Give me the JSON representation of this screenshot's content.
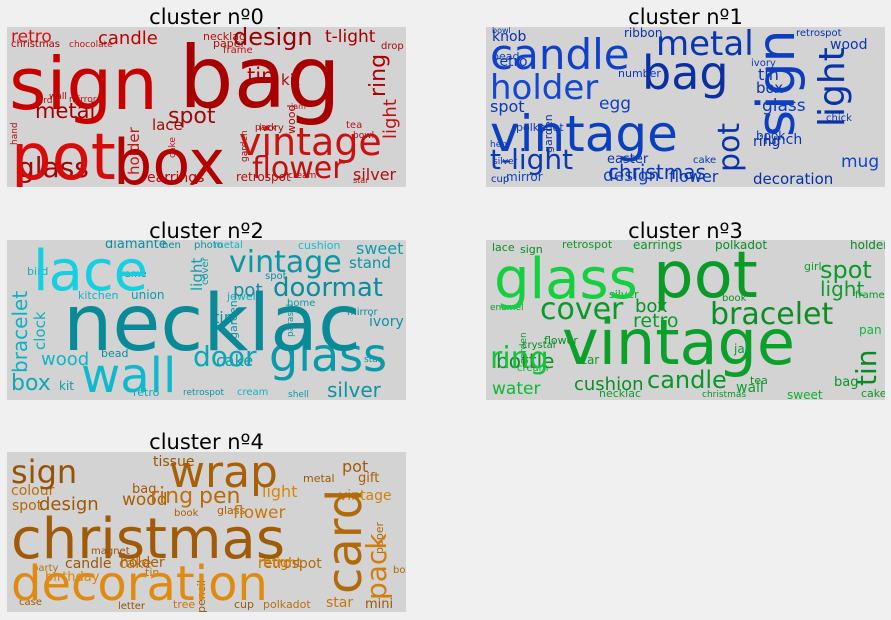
{
  "panels": [
    {
      "title": "cluster nº0",
      "words": [
        {
          "text": "sign",
          "color": "#c70000"
        },
        {
          "text": "bag",
          "color": "#a80000"
        },
        {
          "text": "pot",
          "color": "#d80b0b"
        },
        {
          "text": "box",
          "color": "#b30000"
        },
        {
          "text": "vintage",
          "color": "#cc1010"
        },
        {
          "text": "design",
          "color": "#9a0000"
        },
        {
          "text": "flower",
          "color": "#c21010"
        },
        {
          "text": "glass",
          "color": "#a00808"
        },
        {
          "text": "metal",
          "color": "#a50000"
        },
        {
          "text": "candle",
          "color": "#c00000"
        },
        {
          "text": "retro",
          "color": "#d01515"
        },
        {
          "text": "ring",
          "color": "#b00000"
        },
        {
          "text": "light",
          "color": "#c01010"
        },
        {
          "text": "spot",
          "color": "#9c0a0a"
        },
        {
          "text": "tin",
          "color": "#b80000"
        },
        {
          "text": "t-light",
          "color": "#a00000"
        },
        {
          "text": "silver",
          "color": "#b01010"
        },
        {
          "text": "holder",
          "color": "#c51515"
        },
        {
          "text": "lace",
          "color": "#9a0a0a"
        },
        {
          "text": "earrings",
          "color": "#c00a0a"
        },
        {
          "text": "kit",
          "color": "#a80b0b"
        },
        {
          "text": "necklac",
          "color": "#b81010"
        },
        {
          "text": "christmas",
          "color": "#a00505"
        },
        {
          "text": "paper",
          "color": "#b30a0a"
        },
        {
          "text": "frame",
          "color": "#c01212"
        },
        {
          "text": "wood",
          "color": "#a80a0a"
        },
        {
          "text": "cake",
          "color": "#c81414"
        },
        {
          "text": "garden",
          "color": "#b00808"
        },
        {
          "text": "ivory",
          "color": "#a00a0a"
        },
        {
          "text": "retrospot",
          "color": "#b51010"
        },
        {
          "text": "chocolate",
          "color": "#c41212"
        },
        {
          "text": "wall",
          "color": "#a10808"
        },
        {
          "text": "bird",
          "color": "#b40c0c"
        },
        {
          "text": "mirror",
          "color": "#c21010"
        },
        {
          "text": "drop",
          "color": "#a90909"
        },
        {
          "text": "pack",
          "color": "#b00b0b"
        },
        {
          "text": "tea",
          "color": "#c01010"
        },
        {
          "text": "bowl",
          "color": "#a50808"
        },
        {
          "text": "hand",
          "color": "#b80c0c"
        },
        {
          "text": "jam",
          "color": "#c41414"
        },
        {
          "text": "cream",
          "color": "#a60a0a"
        },
        {
          "text": "star",
          "color": "#b20c0c"
        }
      ]
    },
    {
      "title": "cluster nº1",
      "words": [
        {
          "text": "vintage",
          "color": "#0a3fbf"
        },
        {
          "text": "bag",
          "color": "#0b2fa0"
        },
        {
          "text": "candle",
          "color": "#1040c8"
        },
        {
          "text": "metal",
          "color": "#0a35b0"
        },
        {
          "text": "sign",
          "color": "#0d3ec2"
        },
        {
          "text": "light",
          "color": "#0a32a8"
        },
        {
          "text": "holder",
          "color": "#1447d0"
        },
        {
          "text": "t-light",
          "color": "#0b38b5"
        },
        {
          "text": "pot",
          "color": "#0c33a5"
        },
        {
          "text": "christmas",
          "color": "#0a35b8"
        },
        {
          "text": "design",
          "color": "#1345c5"
        },
        {
          "text": "decoration",
          "color": "#0a30a0"
        },
        {
          "text": "flower",
          "color": "#0d3ab0"
        },
        {
          "text": "spot",
          "color": "#0b38b8"
        },
        {
          "text": "egg",
          "color": "#1040c0"
        },
        {
          "text": "box",
          "color": "#0a33a8"
        },
        {
          "text": "tin",
          "color": "#0b36b0"
        },
        {
          "text": "glass",
          "color": "#0d3cbc"
        },
        {
          "text": "ring",
          "color": "#0a30a4"
        },
        {
          "text": "mug",
          "color": "#1244c6"
        },
        {
          "text": "lunch",
          "color": "#0b35ac"
        },
        {
          "text": "wood",
          "color": "#0a38b4"
        },
        {
          "text": "retro",
          "color": "#0d3ab8"
        },
        {
          "text": "knob",
          "color": "#0a32a8"
        },
        {
          "text": "mirror",
          "color": "#1042c4"
        },
        {
          "text": "easter",
          "color": "#0b36b0"
        },
        {
          "text": "cup",
          "color": "#0a30a0"
        },
        {
          "text": "book",
          "color": "#0d3cb8"
        },
        {
          "text": "bowl",
          "color": "#0b35ac"
        },
        {
          "text": "ribbon",
          "color": "#0a33a8"
        },
        {
          "text": "polkadot",
          "color": "#0d3ab4"
        },
        {
          "text": "number",
          "color": "#0b38b8"
        },
        {
          "text": "garden",
          "color": "#0a32a6"
        },
        {
          "text": "bead",
          "color": "#1040c0"
        },
        {
          "text": "cake",
          "color": "#0b36ae"
        },
        {
          "text": "retrospot",
          "color": "#0a35b0"
        },
        {
          "text": "hen",
          "color": "#0d3cba"
        },
        {
          "text": "silver",
          "color": "#0b33a8"
        },
        {
          "text": "chick",
          "color": "#0a38b4"
        },
        {
          "text": "ivory",
          "color": "#0d3ab0"
        }
      ]
    },
    {
      "title": "cluster nº2",
      "words": [
        {
          "text": "necklac",
          "color": "#0a8a96"
        },
        {
          "text": "lace",
          "color": "#14d0e0"
        },
        {
          "text": "wall",
          "color": "#10b8cc"
        },
        {
          "text": "glass",
          "color": "#0a9aa8"
        },
        {
          "text": "door",
          "color": "#0ca6b6"
        },
        {
          "text": "vintage",
          "color": "#0b96a4"
        },
        {
          "text": "doormat",
          "color": "#0a8e9c"
        },
        {
          "text": "bracelet",
          "color": "#10b0c2"
        },
        {
          "text": "box",
          "color": "#0ea8ba"
        },
        {
          "text": "silver",
          "color": "#0b94a2"
        },
        {
          "text": "wood",
          "color": "#10b4c6"
        },
        {
          "text": "cake",
          "color": "#0a9cac"
        },
        {
          "text": "pot",
          "color": "#0b90a0"
        },
        {
          "text": "sweet",
          "color": "#0d9aa8"
        },
        {
          "text": "stand",
          "color": "#0b94a2"
        },
        {
          "text": "diamante",
          "color": "#0a8e9c"
        },
        {
          "text": "clock",
          "color": "#10b0c0"
        },
        {
          "text": "tin",
          "color": "#0b98a6"
        },
        {
          "text": "light",
          "color": "#0ca0ae"
        },
        {
          "text": "ivory",
          "color": "#0b92a0"
        },
        {
          "text": "kitchen",
          "color": "#10b4c4"
        },
        {
          "text": "union",
          "color": "#0a9aa8"
        },
        {
          "text": "mirror",
          "color": "#0b90a0"
        },
        {
          "text": "retro",
          "color": "#0ea8b8"
        },
        {
          "text": "garden",
          "color": "#0b96a4"
        },
        {
          "text": "cushion",
          "color": "#12c0d0"
        },
        {
          "text": "photo",
          "color": "#0b94a2"
        },
        {
          "text": "frame",
          "color": "#0a8e9c"
        },
        {
          "text": "kit",
          "color": "#0d9caa"
        },
        {
          "text": "jewel",
          "color": "#10b0c0"
        },
        {
          "text": "spot",
          "color": "#0b92a0"
        },
        {
          "text": "cover",
          "color": "#0ca0ae"
        },
        {
          "text": "bead",
          "color": "#0a8e9c"
        },
        {
          "text": "cream",
          "color": "#10b4c4"
        },
        {
          "text": "retrospot",
          "color": "#0b94a2"
        },
        {
          "text": "shell",
          "color": "#0a9aa8"
        },
        {
          "text": "star",
          "color": "#0b90a0"
        },
        {
          "text": "home",
          "color": "#0d98a6"
        },
        {
          "text": "bird",
          "color": "#10b0c0"
        },
        {
          "text": "parasol",
          "color": "#0b96a4"
        },
        {
          "text": "hen",
          "color": "#0a8e9c"
        },
        {
          "text": "metal",
          "color": "#10b4c6"
        }
      ]
    },
    {
      "title": "cluster nº3",
      "words": [
        {
          "text": "vintage",
          "color": "#0aa02a"
        },
        {
          "text": "pot",
          "color": "#0a9a28"
        },
        {
          "text": "glass",
          "color": "#14d040"
        },
        {
          "text": "bracelet",
          "color": "#0c8e26"
        },
        {
          "text": "cover",
          "color": "#0b9a2a"
        },
        {
          "text": "ring",
          "color": "#12c43c"
        },
        {
          "text": "candle",
          "color": "#0a962a"
        },
        {
          "text": "cushion",
          "color": "#0b8e28"
        },
        {
          "text": "spot",
          "color": "#0c9a2c"
        },
        {
          "text": "tin",
          "color": "#0a8a24"
        },
        {
          "text": "light",
          "color": "#0d9e2e"
        },
        {
          "text": "bottle",
          "color": "#0b922a"
        },
        {
          "text": "water",
          "color": "#10b836"
        },
        {
          "text": "retro",
          "color": "#0c9a2c"
        },
        {
          "text": "box",
          "color": "#0a8e26"
        },
        {
          "text": "bag",
          "color": "#0b922a"
        },
        {
          "text": "wall",
          "color": "#0d9e2e"
        },
        {
          "text": "sweet",
          "color": "#10b030"
        },
        {
          "text": "earrings",
          "color": "#0a9628"
        },
        {
          "text": "polkadot",
          "color": "#0b8e28"
        },
        {
          "text": "retrospot",
          "color": "#0c9a2c"
        },
        {
          "text": "holder",
          "color": "#0a8a24"
        },
        {
          "text": "silver",
          "color": "#0d9e2e"
        },
        {
          "text": "pan",
          "color": "#10b836"
        },
        {
          "text": "tea",
          "color": "#0b922a"
        },
        {
          "text": "cake",
          "color": "#0a962a"
        },
        {
          "text": "star",
          "color": "#0c9a2c"
        },
        {
          "text": "lace",
          "color": "#0b8e28"
        },
        {
          "text": "sign",
          "color": "#0a8a24"
        },
        {
          "text": "necklac",
          "color": "#0d9e2e"
        },
        {
          "text": "christmas",
          "color": "#0b922a"
        },
        {
          "text": "cream",
          "color": "#10b030"
        },
        {
          "text": "frame",
          "color": "#0a9628"
        },
        {
          "text": "garden",
          "color": "#0c9a2c"
        },
        {
          "text": "flower",
          "color": "#0b8e28"
        },
        {
          "text": "crystal",
          "color": "#0a8a24"
        },
        {
          "text": "girl",
          "color": "#0d9e2e"
        },
        {
          "text": "book",
          "color": "#0b922a"
        },
        {
          "text": "enamel",
          "color": "#0a962a"
        },
        {
          "text": "jar",
          "color": "#0c9a2c"
        }
      ]
    },
    {
      "title": "cluster nº4",
      "words": [
        {
          "text": "christmas",
          "color": "#a05a08"
        },
        {
          "text": "decoration",
          "color": "#e08a10"
        },
        {
          "text": "card",
          "color": "#b06a0a"
        },
        {
          "text": "wrap",
          "color": "#a86008"
        },
        {
          "text": "sign",
          "color": "#965206"
        },
        {
          "text": "pack",
          "color": "#d07e0e"
        },
        {
          "text": "ring",
          "color": "#c0700c"
        },
        {
          "text": "pen",
          "color": "#b66a0a"
        },
        {
          "text": "design",
          "color": "#9a5808"
        },
        {
          "text": "wood",
          "color": "#a86008"
        },
        {
          "text": "flower",
          "color": "#c8760c"
        },
        {
          "text": "light",
          "color": "#d8860e"
        },
        {
          "text": "pot",
          "color": "#a05a08"
        },
        {
          "text": "cake",
          "color": "#c0700c"
        },
        {
          "text": "vintage",
          "color": "#d08010"
        },
        {
          "text": "candle",
          "color": "#9a5808"
        },
        {
          "text": "holder",
          "color": "#a86008"
        },
        {
          "text": "spot",
          "color": "#b06a0a"
        },
        {
          "text": "tissue",
          "color": "#965206"
        },
        {
          "text": "colour",
          "color": "#b8700c"
        },
        {
          "text": "bag",
          "color": "#a05a08"
        },
        {
          "text": "star",
          "color": "#c8760c"
        },
        {
          "text": "mini",
          "color": "#9a5808"
        },
        {
          "text": "retro",
          "color": "#d8860e"
        },
        {
          "text": "retrospot",
          "color": "#b06a0a"
        },
        {
          "text": "t-light",
          "color": "#c0700c"
        },
        {
          "text": "gift",
          "color": "#a86008"
        },
        {
          "text": "birthday",
          "color": "#d8860e"
        },
        {
          "text": "paper",
          "color": "#b06a0a"
        },
        {
          "text": "metal",
          "color": "#9a5808"
        },
        {
          "text": "cup",
          "color": "#a05a08"
        },
        {
          "text": "tree",
          "color": "#c8760c"
        },
        {
          "text": "polkadot",
          "color": "#b8700c"
        },
        {
          "text": "letter",
          "color": "#965206"
        },
        {
          "text": "glass",
          "color": "#a86008"
        },
        {
          "text": "tin",
          "color": "#c0700c"
        },
        {
          "text": "box",
          "color": "#b06a0a"
        },
        {
          "text": "case",
          "color": "#9a5808"
        },
        {
          "text": "pencil",
          "color": "#a05a08"
        },
        {
          "text": "party",
          "color": "#b8700c"
        },
        {
          "text": "magnet",
          "color": "#965206"
        },
        {
          "text": "book",
          "color": "#a86008"
        }
      ]
    }
  ]
}
